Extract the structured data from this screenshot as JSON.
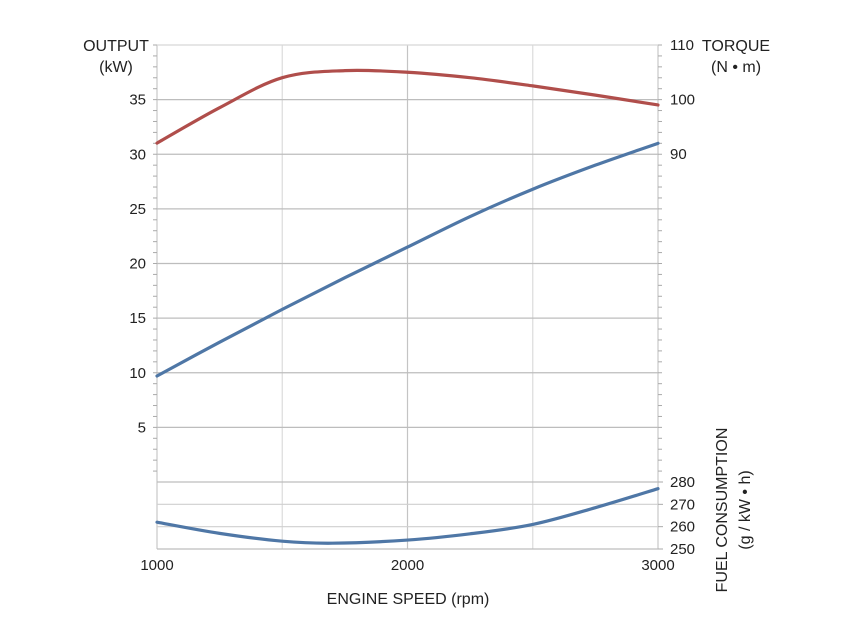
{
  "chart_data": {
    "type": "line",
    "title": "",
    "xlabel": "ENGINE SPEED (rpm)",
    "x_ticks": [
      "1000",
      "2000",
      "3000"
    ],
    "xlim": [
      1000,
      3000
    ],
    "x_grid": [
      1000,
      1500,
      2000,
      2500,
      3000
    ],
    "grid": true,
    "axes": {
      "output": {
        "label_line1": "OUTPUT",
        "label_line2": "(kW)",
        "side": "left",
        "ticks": [
          "5",
          "10",
          "15",
          "20",
          "25",
          "30",
          "35"
        ],
        "tick_values": [
          5,
          10,
          15,
          20,
          25,
          30,
          35
        ],
        "range": [
          0,
          40
        ]
      },
      "torque": {
        "label_line1": "TORQUE",
        "label_line2": "(N • m)",
        "side": "right",
        "ticks": [
          "90",
          "100",
          "110"
        ],
        "tick_values": [
          90,
          100,
          110
        ],
        "range": [
          90,
          110
        ]
      },
      "fuel": {
        "label_line1": "FUEL CONSUMPTION",
        "label_line2": "(g / kW • h)",
        "side": "right",
        "ticks": [
          "250",
          "260",
          "270",
          "280"
        ],
        "tick_values": [
          250,
          260,
          270,
          280
        ],
        "range": [
          250,
          280
        ]
      }
    },
    "series": [
      {
        "name": "Torque",
        "axis": "torque",
        "color": "#b04e4b",
        "x": [
          1000,
          1250,
          1500,
          1750,
          2000,
          2250,
          2500,
          2750,
          3000
        ],
        "values": [
          92.0,
          98.5,
          104.0,
          105.3,
          105.0,
          104.0,
          102.5,
          100.8,
          99.0
        ]
      },
      {
        "name": "Output",
        "axis": "output",
        "color": "#4f77a6",
        "x": [
          1000,
          1250,
          1500,
          1750,
          2000,
          2250,
          2500,
          2750,
          3000
        ],
        "values": [
          9.7,
          12.8,
          15.8,
          18.7,
          21.5,
          24.3,
          26.8,
          29.0,
          31.0
        ]
      },
      {
        "name": "Fuel Consumption",
        "axis": "fuel",
        "color": "#4f77a6",
        "x": [
          1000,
          1250,
          1500,
          1700,
          2000,
          2250,
          2500,
          2750,
          3000
        ],
        "values": [
          262.0,
          257.0,
          253.5,
          252.6,
          254.0,
          256.8,
          261.0,
          268.5,
          277.0
        ]
      }
    ]
  }
}
